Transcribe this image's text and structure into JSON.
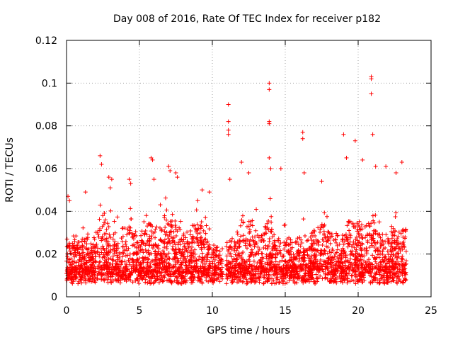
{
  "chart_data": {
    "type": "scatter",
    "title": "Day 008 of 2016, Rate Of TEC Index for receiver p182",
    "xlabel": "GPS time / hours",
    "ylabel": "ROTI / TECUs",
    "xlim": [
      0,
      25
    ],
    "ylim": [
      0,
      0.12
    ],
    "xticks": [
      0,
      5,
      10,
      15,
      20,
      25
    ],
    "xtick_labels": [
      "0",
      "5",
      "10",
      "15",
      "20",
      "25"
    ],
    "yticks": [
      0,
      0.02,
      0.04,
      0.06,
      0.08,
      0.1,
      0.12
    ],
    "ytick_labels": [
      "0",
      "0.02",
      "0.04",
      "0.06",
      "0.08",
      "0.1",
      "0.12"
    ],
    "grid": true,
    "marker": "+",
    "colors": {
      "series": "#ff0000",
      "grid": "#a0a0a0",
      "axes": "#000000"
    },
    "series": [
      {
        "name": "ROTI",
        "note": "dense cloud of ROTI samples, mostly 0.005–0.03 TECU, spanning 0–23.3 h with a gap near 10.8 h; notable outliers listed below",
        "outliers": [
          {
            "x": 0.1,
            "y": 0.047
          },
          {
            "x": 0.2,
            "y": 0.045
          },
          {
            "x": 1.3,
            "y": 0.049
          },
          {
            "x": 2.3,
            "y": 0.066
          },
          {
            "x": 2.4,
            "y": 0.062
          },
          {
            "x": 2.9,
            "y": 0.056
          },
          {
            "x": 3.0,
            "y": 0.051
          },
          {
            "x": 3.1,
            "y": 0.055
          },
          {
            "x": 4.3,
            "y": 0.055
          },
          {
            "x": 4.4,
            "y": 0.053
          },
          {
            "x": 5.8,
            "y": 0.065
          },
          {
            "x": 5.9,
            "y": 0.064
          },
          {
            "x": 6.0,
            "y": 0.055
          },
          {
            "x": 7.0,
            "y": 0.061
          },
          {
            "x": 7.1,
            "y": 0.059
          },
          {
            "x": 7.5,
            "y": 0.058
          },
          {
            "x": 7.6,
            "y": 0.056
          },
          {
            "x": 9.0,
            "y": 0.045
          },
          {
            "x": 9.3,
            "y": 0.05
          },
          {
            "x": 9.8,
            "y": 0.049
          },
          {
            "x": 11.1,
            "y": 0.09
          },
          {
            "x": 11.1,
            "y": 0.082
          },
          {
            "x": 11.1,
            "y": 0.078
          },
          {
            "x": 11.1,
            "y": 0.076
          },
          {
            "x": 11.2,
            "y": 0.055
          },
          {
            "x": 12.0,
            "y": 0.063
          },
          {
            "x": 12.5,
            "y": 0.058
          },
          {
            "x": 13.9,
            "y": 0.1
          },
          {
            "x": 13.9,
            "y": 0.097
          },
          {
            "x": 13.9,
            "y": 0.082
          },
          {
            "x": 13.9,
            "y": 0.081
          },
          {
            "x": 13.9,
            "y": 0.065
          },
          {
            "x": 14.0,
            "y": 0.06
          },
          {
            "x": 14.7,
            "y": 0.06
          },
          {
            "x": 16.2,
            "y": 0.077
          },
          {
            "x": 16.2,
            "y": 0.074
          },
          {
            "x": 16.3,
            "y": 0.058
          },
          {
            "x": 17.5,
            "y": 0.054
          },
          {
            "x": 19.0,
            "y": 0.076
          },
          {
            "x": 19.2,
            "y": 0.065
          },
          {
            "x": 19.8,
            "y": 0.073
          },
          {
            "x": 20.3,
            "y": 0.064
          },
          {
            "x": 20.9,
            "y": 0.103
          },
          {
            "x": 20.9,
            "y": 0.102
          },
          {
            "x": 20.9,
            "y": 0.095
          },
          {
            "x": 21.0,
            "y": 0.076
          },
          {
            "x": 21.2,
            "y": 0.061
          },
          {
            "x": 21.9,
            "y": 0.061
          },
          {
            "x": 22.6,
            "y": 0.058
          },
          {
            "x": 23.0,
            "y": 0.063
          }
        ]
      }
    ]
  }
}
